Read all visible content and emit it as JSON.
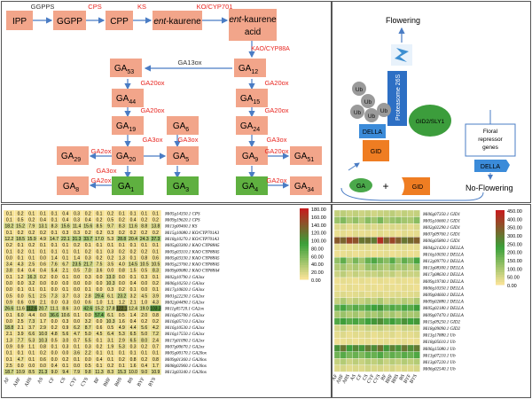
{
  "pathway": {
    "nodes": {
      "ipp": "IPP",
      "ggpp": "GGPP",
      "cpp": "CPP",
      "entk_i": "ent",
      "entk_r": "-kaurene",
      "acid_i": "ent",
      "acid_r": "-kaurene",
      "acid_r2": "acid",
      "ga53": [
        "GA",
        "53"
      ],
      "ga12": [
        "GA",
        "12"
      ],
      "ga44": [
        "GA",
        "44"
      ],
      "ga15": [
        "GA",
        "15"
      ],
      "ga19": [
        "GA",
        "19"
      ],
      "ga6": [
        "GA",
        "6"
      ],
      "ga24": [
        "GA",
        "24"
      ],
      "ga29": [
        "GA",
        "29"
      ],
      "ga20": [
        "GA",
        "20"
      ],
      "ga5": [
        "GA",
        "5"
      ],
      "ga9": [
        "GA",
        "9"
      ],
      "ga51": [
        "GA",
        "51"
      ],
      "ga8": [
        "GA",
        "8"
      ],
      "ga1": [
        "GA",
        "1"
      ],
      "ga3": [
        "GA",
        "3"
      ],
      "ga4": [
        "GA",
        "4"
      ],
      "ga34": [
        "GA",
        "34"
      ]
    },
    "enzymes": {
      "ggpps": "GGPPS",
      "cps": "CPS",
      "ks": "KS",
      "ko": "KO/CYP701",
      "ga13ox": "GA13ox",
      "kao": "KAO/CYP88A",
      "ga20ox": "GA20ox",
      "ga2ox": "GA2ox",
      "ga3ox": "GA3ox"
    },
    "colors": {
      "node": "#f2a58a",
      "active": "#5fb040",
      "enzyme": "#e8251f",
      "arrow": "#4a7cc4"
    }
  },
  "signaling": {
    "flowering": "Flowering",
    "no_flowering": "No-Flowering",
    "proteasome": "Proteasome 26S",
    "ub": "Ub",
    "gid2": "GID2/SLY1",
    "della": "DELLA",
    "gid": "GID",
    "ga": "GA",
    "plus": "+",
    "repressor": [
      "Floral",
      "repressor",
      "genes"
    ]
  },
  "heatmap1": {
    "columns": [
      "AF",
      "AHF",
      "AHS",
      "AS",
      "CF",
      "CS",
      "CYF",
      "CYS",
      "BF",
      "BHF",
      "BHS",
      "BS",
      "BYF",
      "BYS"
    ],
    "legend": [
      "180.00",
      "160.00",
      "140.00",
      "120.00",
      "100.00",
      "80.00",
      "60.00",
      "40.00",
      "20.00",
      "0.00"
    ],
    "max": 180,
    "rows": [
      {
        "gene": "Mi05g14350.1 CPS",
        "values": [
          0.1,
          0.2,
          0.1,
          0.1,
          0.1,
          0.4,
          0.3,
          0.2,
          0.1,
          0.2,
          0.1,
          0.1,
          0.1,
          0.1
        ]
      },
      {
        "gene": "Mi09g19620.1 CPS",
        "values": [
          0.1,
          0.5,
          0.2,
          0.4,
          0.1,
          0.4,
          0.3,
          0.4,
          0.2,
          0.5,
          0.2,
          0.4,
          0.2,
          0.2
        ]
      },
      {
        "gene": "Mi13g00460.1 KS",
        "values": [
          18.2,
          15.2,
          7.9,
          13.1,
          8.3,
          15.6,
          11.4,
          15.6,
          8.5,
          9.7,
          8.3,
          11.6,
          8.8,
          13.8
        ]
      },
      {
        "gene": "Mi15g10080.1 KO/CYP701A3",
        "values": [
          0.1,
          0.2,
          0.2,
          0.2,
          0.1,
          0.3,
          0.3,
          0.2,
          0.2,
          0.3,
          0.2,
          0.2,
          0.2,
          0.2
        ]
      },
      {
        "gene": "Mi18g10270.1 KO/CYP701A3",
        "values": [
          12.2,
          18.5,
          15.9,
          4.9,
          14.7,
          22.1,
          31.3,
          33.7,
          17.0,
          5.3,
          28.8,
          20.4,
          24.3,
          37.3
        ]
      },
      {
        "gene": "Mi05g03300.1 KAO CYP88A5",
        "values": [
          0.2,
          0.1,
          0.2,
          0.1,
          0.1,
          0.1,
          0.2,
          0.1,
          0.1,
          0.1,
          0.1,
          0.1,
          0.1,
          0.1
        ]
      },
      {
        "gene": "Mi05g03310.1 KAO CYP88A5",
        "values": [
          0.1,
          0.2,
          0.1,
          0.1,
          0.1,
          0.1,
          0.1,
          0.2,
          0.1,
          0.3,
          0.2,
          0.2,
          0.2,
          0.1
        ]
      },
      {
        "gene": "Mi05g03330.1 KAO CYP88A5",
        "values": [
          0.0,
          0.1,
          0.1,
          0.0,
          1.4,
          0.1,
          1.4,
          0.3,
          0.2,
          0.2,
          1.3,
          0.1,
          0.8,
          0.6
        ]
      },
      {
        "gene": "Mi05g23760.1 KAO CYP88A5",
        "values": [
          3.4,
          4.3,
          2.5,
          0.6,
          7.6,
          6.7,
          23.5,
          21.7,
          7.5,
          3.5,
          4.0,
          14.5,
          10.5,
          10.5
        ]
      },
      {
        "gene": "Mi09g00080.1 KAO CYP88A4",
        "values": [
          3.8,
          0.4,
          0.4,
          0.4,
          5.4,
          2.1,
          0.5,
          7.0,
          3.6,
          0.0,
          0.8,
          1.5,
          0.5,
          8.3
        ]
      },
      {
        "gene": "Mi02g10790.1 GA3ox",
        "values": [
          0.1,
          1.2,
          16.3,
          0.2,
          0.0,
          0.1,
          0.0,
          0.3,
          0.0,
          13.0,
          0.0,
          0.1,
          0.3,
          0.1
        ]
      },
      {
        "gene": "Mi06g10250.1 GA3ox",
        "values": [
          0.0,
          0.0,
          3.2,
          0.0,
          0.0,
          0.0,
          0.0,
          0.0,
          0.0,
          10.3,
          0.0,
          0.4,
          0.0,
          0.2
        ]
      },
      {
        "gene": "Mi17g10820.1 GA3ox",
        "values": [
          0.0,
          0.1,
          0.1,
          0.1,
          0.0,
          0.1,
          0.0,
          0.1,
          0.0,
          0.3,
          0.2,
          0.1,
          0.0,
          0.1
        ]
      },
      {
        "gene": "Mi01g22230.1 GA2ox",
        "values": [
          0.5,
          0.0,
          5.1,
          2.5,
          7.3,
          3.7,
          0.3,
          2.8,
          29.4,
          6.1,
          23.2,
          3.2,
          4.5,
          3.9
        ]
      },
      {
        "gene": "Mi02g04490.1 GA2ox",
        "values": [
          0.9,
          0.6,
          0.9,
          2.1,
          0.0,
          0.3,
          0.0,
          0.6,
          1.0,
          1.1,
          1.2,
          2.1,
          1.0,
          4.3
        ]
      },
      {
        "gene": "Mi11g05720.1 GA2ox",
        "values": [
          26.6,
          11.6,
          112.6,
          20.7,
          11.1,
          8.6,
          3.0,
          42.6,
          15.2,
          17.8,
          122.1,
          12.4,
          19.0,
          103.3
        ]
      },
      {
        "gene": "Mi16g05700.1 GA2ox",
        "values": [
          0.1,
          6.0,
          4.4,
          0.0,
          36.6,
          10.6,
          0.1,
          0.0,
          57.4,
          6.1,
          0.5,
          1.4,
          2.0,
          0.8
        ]
      },
      {
        "gene": "Mi16g05710.1 GA2ox",
        "values": [
          0.0,
          2.5,
          7.3,
          1.7,
          0.0,
          0.3,
          0.0,
          3.2,
          0.0,
          10.3,
          1.6,
          0.4,
          0.2,
          0.2
        ]
      },
      {
        "gene": "Mi16g10530.1 GA2ox",
        "values": [
          18.8,
          2.1,
          3.7,
          2.9,
          0.2,
          0.9,
          6.2,
          8.7,
          0.6,
          0.5,
          4.9,
          4.4,
          5.6,
          4.2
        ]
      },
      {
        "gene": "Mi16g17550.1 GA2ox",
        "values": [
          2.1,
          3.9,
          6.6,
          10.0,
          4.8,
          5.6,
          4.7,
          5.0,
          4.5,
          6.4,
          5.3,
          6.5,
          5.0,
          7.2
        ]
      },
      {
        "gene": "Mi17g01090.1 GA2ox",
        "values": [
          1.3,
          7.7,
          5.3,
          10.3,
          0.5,
          3.0,
          0.7,
          5.5,
          0.1,
          3.1,
          2.9,
          6.5,
          8.0,
          2.4
        ]
      },
      {
        "gene": "Mi07g00670.1 GA2ox",
        "values": [
          0.9,
          0.9,
          1.1,
          0.8,
          0.1,
          0.3,
          0.1,
          0.3,
          0.2,
          1.9,
          5.3,
          0.3,
          0.2,
          0.7
        ]
      },
      {
        "gene": "Mi05g00170.1 GA20ox",
        "values": [
          0.1,
          0.1,
          0.1,
          0.2,
          0.0,
          0.0,
          3.6,
          2.2,
          0.1,
          0.1,
          0.1,
          0.1,
          0.1,
          0.1
        ]
      },
      {
        "gene": "Mi09g01360.1 GA20ox",
        "values": [
          0.1,
          4.7,
          0.1,
          0.6,
          0.0,
          0.2,
          0.1,
          0.0,
          0.4,
          0.1,
          0.2,
          0.8,
          0.2,
          0.8
        ]
      },
      {
        "gene": "Mi08g02960.1 GA20ox",
        "values": [
          2.5,
          0.0,
          0.0,
          0.0,
          0.4,
          0.1,
          0.0,
          0.5,
          0.1,
          0.2,
          0.1,
          1.6,
          0.4,
          1.7
        ]
      },
      {
        "gene": "Mi13g03340.1 GA20ox",
        "values": [
          18.7,
          10.9,
          8.5,
          21.3,
          9.0,
          9.4,
          7.9,
          9.8,
          11.3,
          8.3,
          15.3,
          10.0,
          9.0,
          10.9
        ]
      }
    ]
  },
  "heatmap2": {
    "columns": [
      "AF",
      "AHF",
      "AHS",
      "AS",
      "CF",
      "CS",
      "CYF",
      "CYS",
      "BF",
      "BHF",
      "BHS",
      "BS",
      "BYF",
      "BYS"
    ],
    "legend": [
      "450.00",
      "400.00",
      "350.00",
      "300.00",
      "250.00",
      "200.00",
      "150.00",
      "100.00",
      "50.00",
      "0.00"
    ],
    "max": 450,
    "rows": [
      {
        "gene": "Mi06g07350.1 GID1",
        "values": [
          60,
          70,
          55,
          65,
          50,
          60,
          45,
          55,
          60,
          70,
          50,
          65,
          55,
          60
        ]
      },
      {
        "gene": "Mi05g16660.1 GID1",
        "values": [
          110,
          140,
          90,
          120,
          80,
          130,
          100,
          150,
          90,
          110,
          120,
          100,
          90,
          130
        ]
      },
      {
        "gene": "Mi02g02290.1 GID1",
        "values": [
          30,
          40,
          20,
          35,
          25,
          45,
          30,
          40,
          25,
          35,
          30,
          40,
          20,
          35
        ]
      },
      {
        "gene": "Mi07g09760.1 GID1",
        "values": [
          15,
          20,
          10,
          25,
          15,
          20,
          10,
          25,
          15,
          20,
          10,
          25,
          15,
          20
        ]
      },
      {
        "gene": "Mi06g05800.1 GID1",
        "values": [
          350,
          330,
          380,
          360,
          300,
          310,
          290,
          420,
          330,
          380,
          340,
          300,
          320,
          340
        ]
      },
      {
        "gene": "Mi04g21420.1 DELLA",
        "values": [
          20,
          25,
          15,
          25,
          20,
          25,
          15,
          20,
          25,
          15,
          20,
          25,
          15,
          20
        ]
      },
      {
        "gene": "Mi16g10030.1 DELLA",
        "values": [
          10,
          15,
          20,
          10,
          15,
          20,
          10,
          15,
          20,
          10,
          15,
          20,
          10,
          15
        ]
      },
      {
        "gene": "Mi12g09770.1 DELLA",
        "values": [
          120,
          180,
          90,
          150,
          100,
          170,
          200,
          160,
          130,
          190,
          110,
          180,
          140,
          210
        ]
      },
      {
        "gene": "Mi13g08300.1 DELLA",
        "values": [
          80,
          100,
          70,
          90,
          60,
          110,
          120,
          100,
          80,
          120,
          90,
          100,
          70,
          110
        ]
      },
      {
        "gene": "Mi17g08630.1 DELLA",
        "values": [
          50,
          70,
          40,
          60,
          45,
          60,
          55,
          70,
          50,
          65,
          40,
          60,
          50,
          55
        ]
      },
      {
        "gene": "Mi09g19740.1 DELLA",
        "values": [
          10,
          20,
          15,
          10,
          20,
          15,
          10,
          20,
          15,
          10,
          20,
          15,
          10,
          20
        ]
      },
      {
        "gene": "Mi06g10350.1 DELLA",
        "values": [
          15,
          10,
          20,
          15,
          10,
          20,
          15,
          10,
          20,
          15,
          10,
          20,
          15,
          10
        ]
      },
      {
        "gene": "Mi09g04660.1 DELLA",
        "values": [
          25,
          30,
          20,
          25,
          30,
          20,
          25,
          30,
          20,
          25,
          30,
          20,
          25,
          30
        ]
      },
      {
        "gene": "Mi09g02880.1 DELLA",
        "values": [
          60,
          90,
          50,
          70,
          55,
          80,
          60,
          90,
          50,
          70,
          55,
          80,
          60,
          90
        ]
      },
      {
        "gene": "Mi05g02180.1 DELLA",
        "values": [
          180,
          210,
          160,
          190,
          170,
          200,
          220,
          240,
          170,
          200,
          180,
          210,
          190,
          230
        ]
      },
      {
        "gene": "Mi09g07470.1 DELLA",
        "values": [
          90,
          110,
          80,
          100,
          70,
          110,
          90,
          120,
          80,
          100,
          70,
          110,
          90,
          100
        ]
      },
      {
        "gene": "Mi15g09250.1 GID2",
        "values": [
          200,
          230,
          190,
          210,
          180,
          220,
          240,
          260,
          200,
          230,
          190,
          250,
          220,
          240
        ]
      },
      {
        "gene": "Mi18g09090.1 GID2",
        "values": [
          40,
          60,
          30,
          50,
          35,
          55,
          45,
          60,
          40,
          50,
          30,
          55,
          45,
          50
        ]
      },
      {
        "gene": "Mi13g17880.1 Ub",
        "values": [
          20,
          30,
          15,
          25,
          20,
          30,
          15,
          25,
          20,
          30,
          15,
          25,
          20,
          30
        ]
      },
      {
        "gene": "Mi18g05610.1 Ub",
        "values": [
          10,
          15,
          20,
          10,
          15,
          20,
          10,
          15,
          20,
          10,
          15,
          20,
          10,
          15
        ]
      },
      {
        "gene": "Mi06g15080.1 Ub",
        "values": [
          250,
          300,
          230,
          270,
          240,
          290,
          260,
          310,
          240,
          280,
          250,
          300,
          260,
          290
        ]
      },
      {
        "gene": "Mi13g07210.1 Ub",
        "values": [
          160,
          190,
          150,
          170,
          140,
          180,
          170,
          200,
          150,
          180,
          160,
          190,
          170,
          200
        ]
      },
      {
        "gene": "Mi13g07220.1 Ub",
        "values": [
          60,
          80,
          50,
          70,
          55,
          75,
          65,
          85,
          55,
          75,
          60,
          80,
          65,
          80
        ]
      },
      {
        "gene": "Mi06g02540.1 Ub",
        "values": [
          30,
          40,
          25,
          35,
          30,
          45,
          35,
          40,
          30,
          40,
          25,
          35,
          30,
          40
        ]
      }
    ]
  }
}
